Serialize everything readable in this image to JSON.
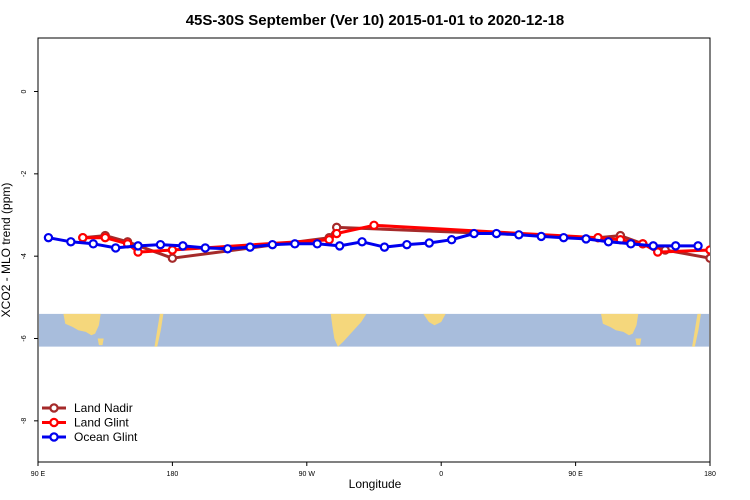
{
  "chart_data": {
    "type": "line",
    "title": "45S-30S September (Ver 10)   2015-01-01 to 2020-12-18",
    "xlabel": "Longitude",
    "ylabel": "XCO2 - MLO trend (ppm)",
    "xlim": [
      90,
      540
    ],
    "ylim": [
      -9,
      1.3
    ],
    "x_ticks": [
      {
        "value": 90,
        "label": "90 E"
      },
      {
        "value": 180,
        "label": "180"
      },
      {
        "value": 270,
        "label": "90 W"
      },
      {
        "value": 360,
        "label": "0"
      },
      {
        "value": 450,
        "label": "90 E"
      },
      {
        "value": 540,
        "label": "180"
      }
    ],
    "y_ticks": [
      {
        "value": 0,
        "label": "0"
      },
      {
        "value": -2,
        "label": "-2"
      },
      {
        "value": -4,
        "label": "-4"
      },
      {
        "value": -6,
        "label": "-6"
      },
      {
        "value": -8,
        "label": "-8"
      }
    ],
    "map_band": {
      "y_top": -5.4,
      "y_bottom": -6.2,
      "ocean_color": "#a8bddc",
      "land_color": "#f5d77c"
    },
    "legend_position": "bottom-left",
    "series": [
      {
        "name": "Land Nadir",
        "color": "#a52a2a",
        "x": [
          120,
          135,
          150,
          180,
          285,
          290,
          465,
          480,
          495,
          510,
          540
        ],
        "y": [
          -3.55,
          -3.5,
          -3.65,
          -4.05,
          -3.55,
          -3.3,
          -3.55,
          -3.5,
          -3.7,
          -3.85,
          -4.05
        ]
      },
      {
        "name": "Land Glint",
        "color": "#ff0000",
        "x": [
          120,
          135,
          150,
          157,
          180,
          285,
          290,
          315,
          465,
          480,
          495,
          505,
          540
        ],
        "y": [
          -3.55,
          -3.55,
          -3.7,
          -3.9,
          -3.85,
          -3.6,
          -3.45,
          -3.25,
          -3.55,
          -3.6,
          -3.7,
          -3.9,
          -3.85
        ]
      },
      {
        "name": "Ocean Glint",
        "color": "#0000ee",
        "x": [
          97,
          112,
          127,
          142,
          157,
          172,
          187,
          202,
          217,
          232,
          247,
          262,
          277,
          292,
          307,
          322,
          337,
          352,
          367,
          382,
          397,
          412,
          427,
          442,
          457,
          472,
          487,
          502,
          517,
          532
        ],
        "y": [
          -3.55,
          -3.65,
          -3.7,
          -3.8,
          -3.75,
          -3.72,
          -3.75,
          -3.8,
          -3.82,
          -3.78,
          -3.72,
          -3.7,
          -3.7,
          -3.75,
          -3.65,
          -3.78,
          -3.72,
          -3.68,
          -3.6,
          -3.45,
          -3.45,
          -3.48,
          -3.52,
          -3.55,
          -3.58,
          -3.65,
          -3.7,
          -3.75,
          -3.75,
          -3.75
        ]
      }
    ]
  }
}
